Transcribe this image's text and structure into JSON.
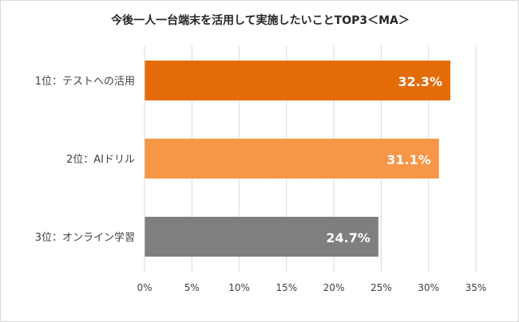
{
  "chart_data": {
    "type": "bar",
    "orientation": "horizontal",
    "title": "今後一人一台端末を活用して実施したいことTOP3＜MA＞",
    "categories": [
      "1位：テストへの活用",
      "2位：AIドリル",
      "3位：オンライン学習"
    ],
    "values": [
      32.3,
      31.1,
      24.7
    ],
    "value_labels": [
      "32.3%",
      "31.1%",
      "24.7%"
    ],
    "bar_colors": [
      "#e36c09",
      "#f79646",
      "#7f7f7f"
    ],
    "xlim": [
      0,
      35
    ],
    "xticks": [
      0,
      5,
      10,
      15,
      20,
      25,
      30,
      35
    ],
    "xtick_labels": [
      "0%",
      "5%",
      "10%",
      "15%",
      "20%",
      "25%",
      "30%",
      "35%"
    ],
    "xlabel": "",
    "ylabel": "",
    "grid": "vertical",
    "legend": "none"
  }
}
